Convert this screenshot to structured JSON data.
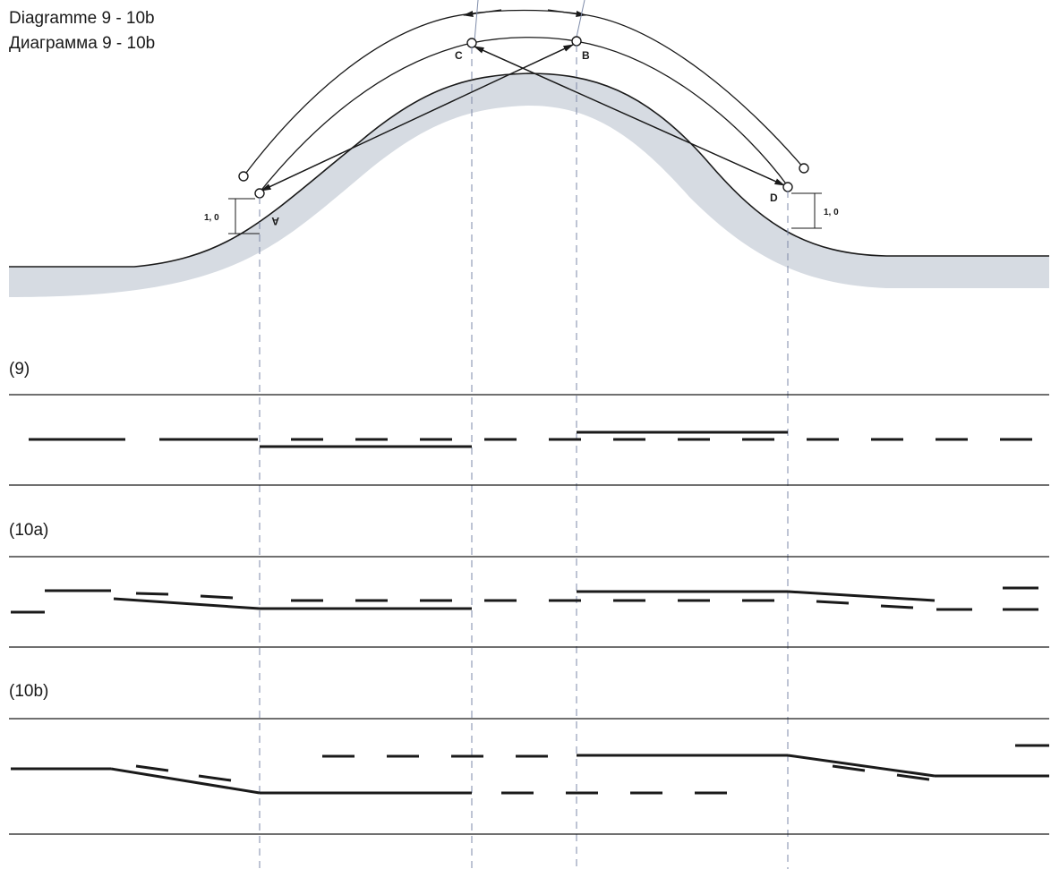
{
  "titles": {
    "line1": "Diagramme 9 - 10b",
    "line2": "Диаграмма 9 - 10b"
  },
  "points": {
    "a": "A",
    "b": "B",
    "c": "C",
    "d": "D"
  },
  "dimensions": {
    "left": "1, 0",
    "right": "1, 0"
  },
  "sections": {
    "s9": "(9)",
    "s10a": "(10a)",
    "s10b": "(10b)"
  },
  "colors": {
    "ink": "#1a1a1a",
    "road_shade": "#d6dbe2",
    "guide": "#7d8aa8"
  }
}
